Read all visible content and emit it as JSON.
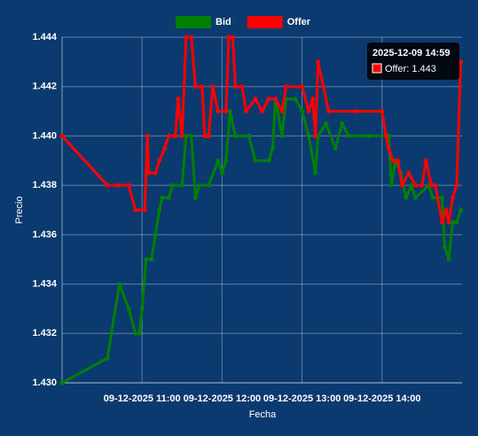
{
  "chart_data": {
    "type": "line",
    "x_label": "Fecha",
    "y_label": "Precio",
    "xlim": [
      "2025-12-09 10:00",
      "2025-12-09 15:00"
    ],
    "xticks": [
      {
        "value": "2025-12-09 11:00",
        "label": "09-12-2025 11:00"
      },
      {
        "value": "2025-12-09 12:00",
        "label": "09-12-2025 12:00"
      },
      {
        "value": "2025-12-09 13:00",
        "label": "09-12-2025 13:00"
      },
      {
        "value": "2025-12-09 14:00",
        "label": "09-12-2025 14:00"
      }
    ],
    "ylim": [
      1.43,
      1.444
    ],
    "yticks": [
      {
        "value": 1.43,
        "label": "1.430"
      },
      1.432,
      1.434,
      1.436,
      1.438,
      {
        "value": 1.44,
        "label": "1.440"
      },
      1.442,
      1.444
    ],
    "grid": true,
    "legend": "top",
    "series": [
      {
        "name": "Bid",
        "color": "#008000",
        "x": [
          "2025-12-09 10:00",
          "2025-12-09 10:34",
          "2025-12-09 10:37",
          "2025-12-09 10:43",
          "2025-12-09 10:50",
          "2025-12-09 10:55",
          "2025-12-09 10:58",
          "2025-12-09 11:00",
          "2025-12-09 11:03",
          "2025-12-09 11:07",
          "2025-12-09 11:10",
          "2025-12-09 11:13",
          "2025-12-09 11:15",
          "2025-12-09 11:20",
          "2025-12-09 11:23",
          "2025-12-09 11:30",
          "2025-12-09 11:33",
          "2025-12-09 11:37",
          "2025-12-09 11:40",
          "2025-12-09 11:43",
          "2025-12-09 11:50",
          "2025-12-09 11:57",
          "2025-12-09 12:00",
          "2025-12-09 12:03",
          "2025-12-09 12:06",
          "2025-12-09 12:10",
          "2025-12-09 12:20",
          "2025-12-09 12:25",
          "2025-12-09 12:35",
          "2025-12-09 12:38",
          "2025-12-09 12:40",
          "2025-12-09 12:45",
          "2025-12-09 12:48",
          "2025-12-09 12:55",
          "2025-12-09 13:00",
          "2025-12-09 13:05",
          "2025-12-09 13:10",
          "2025-12-09 13:12",
          "2025-12-09 13:18",
          "2025-12-09 13:25",
          "2025-12-09 13:30",
          "2025-12-09 13:35",
          "2025-12-09 13:50",
          "2025-12-09 14:05",
          "2025-12-09 14:07",
          "2025-12-09 14:10",
          "2025-12-09 14:14",
          "2025-12-09 14:18",
          "2025-12-09 14:22",
          "2025-12-09 14:25",
          "2025-12-09 14:35",
          "2025-12-09 14:38",
          "2025-12-09 14:45",
          "2025-12-09 14:47",
          "2025-12-09 14:50",
          "2025-12-09 14:53",
          "2025-12-09 14:56",
          "2025-12-09 14:59"
        ],
        "values": [
          1.43,
          1.431,
          1.432,
          1.434,
          1.433,
          1.432,
          1.432,
          1.433,
          1.435,
          1.435,
          1.436,
          1.437,
          1.4375,
          1.4375,
          1.438,
          1.438,
          1.44,
          1.44,
          1.4375,
          1.438,
          1.438,
          1.439,
          1.4385,
          1.439,
          1.441,
          1.44,
          1.44,
          1.439,
          1.439,
          1.4395,
          1.4415,
          1.44,
          1.4415,
          1.4415,
          1.441,
          1.44,
          1.4385,
          1.44,
          1.4405,
          1.4395,
          1.4405,
          1.44,
          1.44,
          1.44,
          1.438,
          1.439,
          1.4385,
          1.4375,
          1.438,
          1.4375,
          1.438,
          1.4375,
          1.4375,
          1.4355,
          1.435,
          1.4365,
          1.4365,
          1.437
        ]
      },
      {
        "name": "Offer",
        "color": "#ff0000",
        "x": [
          "2025-12-09 10:00",
          "2025-12-09 10:34",
          "2025-12-09 10:42",
          "2025-12-09 10:50",
          "2025-12-09 10:55",
          "2025-12-09 11:02",
          "2025-12-09 11:04",
          "2025-12-09 11:05",
          "2025-12-09 11:10",
          "2025-12-09 11:13",
          "2025-12-09 11:17",
          "2025-12-09 11:20",
          "2025-12-09 11:25",
          "2025-12-09 11:27",
          "2025-12-09 11:30",
          "2025-12-09 11:33",
          "2025-12-09 11:37",
          "2025-12-09 11:40",
          "2025-12-09 11:45",
          "2025-12-09 11:47",
          "2025-12-09 11:50",
          "2025-12-09 11:53",
          "2025-12-09 11:57",
          "2025-12-09 12:03",
          "2025-12-09 12:05",
          "2025-12-09 12:08",
          "2025-12-09 12:10",
          "2025-12-09 12:15",
          "2025-12-09 12:18",
          "2025-12-09 12:25",
          "2025-12-09 12:30",
          "2025-12-09 12:35",
          "2025-12-09 12:40",
          "2025-12-09 12:45",
          "2025-12-09 12:48",
          "2025-12-09 13:00",
          "2025-12-09 13:05",
          "2025-12-09 13:08",
          "2025-12-09 13:10",
          "2025-12-09 13:12",
          "2025-12-09 13:16",
          "2025-12-09 13:20",
          "2025-12-09 13:40",
          "2025-12-09 14:00",
          "2025-12-09 14:03",
          "2025-12-09 14:05",
          "2025-12-09 14:08",
          "2025-12-09 14:12",
          "2025-12-09 14:15",
          "2025-12-09 14:20",
          "2025-12-09 14:25",
          "2025-12-09 14:30",
          "2025-12-09 14:33",
          "2025-12-09 14:37",
          "2025-12-09 14:40",
          "2025-12-09 14:45",
          "2025-12-09 14:48",
          "2025-12-09 14:50",
          "2025-12-09 14:53",
          "2025-12-09 14:56",
          "2025-12-09 14:59"
        ],
        "values": [
          1.44,
          1.438,
          1.438,
          1.438,
          1.437,
          1.437,
          1.44,
          1.4385,
          1.4385,
          1.439,
          1.4395,
          1.44,
          1.44,
          1.4415,
          1.44,
          1.444,
          1.444,
          1.442,
          1.442,
          1.44,
          1.44,
          1.442,
          1.441,
          1.441,
          1.444,
          1.444,
          1.442,
          1.442,
          1.441,
          1.4415,
          1.441,
          1.4415,
          1.4415,
          1.441,
          1.442,
          1.442,
          1.441,
          1.4415,
          1.44,
          1.443,
          1.442,
          1.441,
          1.441,
          1.441,
          1.44,
          1.4395,
          1.439,
          1.439,
          1.438,
          1.4385,
          1.438,
          1.438,
          1.439,
          1.438,
          1.438,
          1.4365,
          1.437,
          1.4365,
          1.4375,
          1.438,
          1.443
        ]
      }
    ],
    "tooltip": {
      "title": "2025-12-09 14:59",
      "label": "Offer: 1.443",
      "series": 1
    }
  }
}
